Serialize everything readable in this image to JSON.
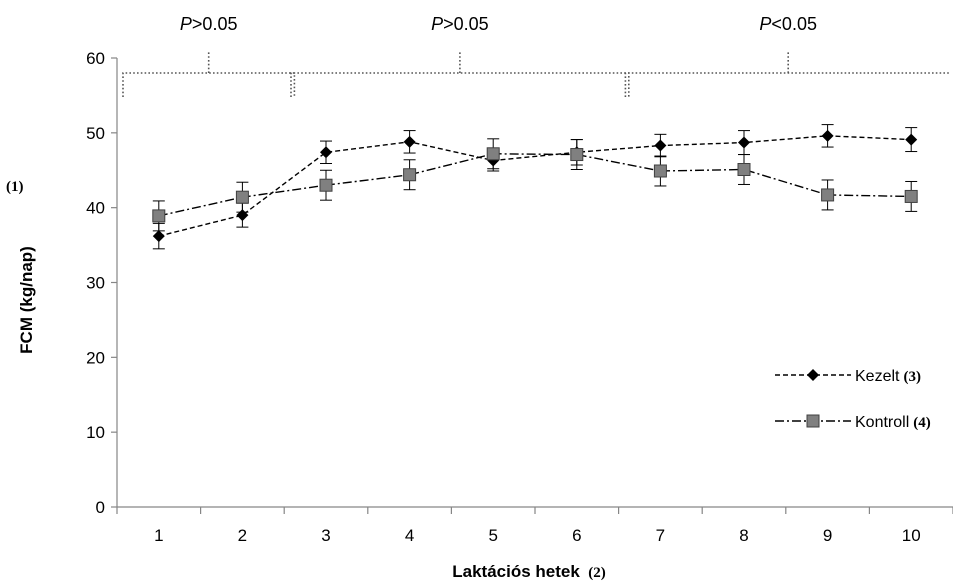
{
  "chart_data": {
    "type": "line",
    "categories": [
      "1",
      "2",
      "3",
      "4",
      "5",
      "6",
      "7",
      "8",
      "9",
      "10"
    ],
    "ylabel": "FCM (kg/nap)",
    "ylabel_tag": "(1)",
    "xlabel": "Laktációs hetek",
    "xlabel_tag": "(2)",
    "ylim": [
      0,
      60
    ],
    "yticks": [
      "0",
      "10",
      "20",
      "30",
      "40",
      "50",
      "60"
    ],
    "grid": false,
    "legend_position": "right",
    "series": [
      {
        "name": "Kezelt",
        "tag": "(3)",
        "marker": "diamond",
        "line_style": "dashed",
        "color": "#000000",
        "values": [
          36.2,
          39.0,
          47.4,
          48.8,
          46.3,
          47.4,
          48.3,
          48.7,
          49.6,
          49.1
        ],
        "errors": [
          1.7,
          1.6,
          1.5,
          1.5,
          1.4,
          1.7,
          1.5,
          1.6,
          1.5,
          1.6
        ]
      },
      {
        "name": "Kontroll",
        "tag": "(4)",
        "marker": "square",
        "line_style": "dash-dot",
        "color": "#808080",
        "values": [
          38.9,
          41.4,
          43.0,
          44.4,
          47.2,
          47.1,
          44.9,
          45.1,
          41.7,
          41.5
        ],
        "errors": [
          2.0,
          2.0,
          2.0,
          2.0,
          2.0,
          2.0,
          2.0,
          2.0,
          2.0,
          2.0
        ]
      }
    ],
    "annotations": [
      {
        "label": "P",
        "value": ">0.05",
        "span": [
          "1",
          "2"
        ]
      },
      {
        "label": "P",
        "value": ">0.05",
        "span": [
          "3",
          "6"
        ]
      },
      {
        "label": "P",
        "value": "<0.05",
        "span": [
          "7",
          "10"
        ]
      }
    ]
  }
}
